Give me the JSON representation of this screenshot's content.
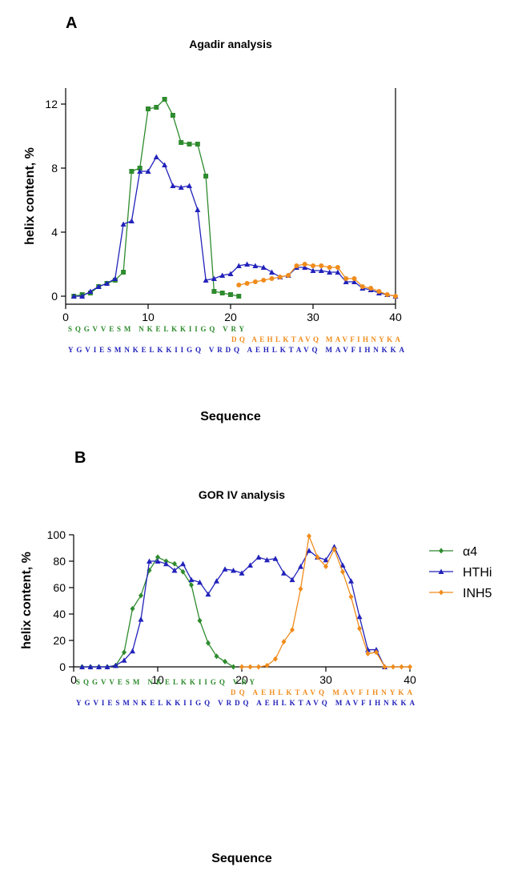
{
  "chart_data": [
    {
      "type": "line",
      "panel": "A",
      "title": "Agadir analysis",
      "x_label": "Sequence",
      "y_label": "helix content, %",
      "xlim": [
        0,
        40
      ],
      "xticks": [
        0,
        10,
        20,
        30,
        40
      ],
      "ylim": [
        -0.5,
        13
      ],
      "yticks": [
        0,
        4,
        8,
        12
      ],
      "right_frame": true,
      "legend": false,
      "series": [
        {
          "color": "#2e8b2e",
          "marker": "square",
          "x": [
            1,
            2,
            3,
            4,
            5,
            6,
            7,
            8,
            9,
            10,
            11,
            12,
            13,
            14,
            15,
            16,
            17,
            18,
            19,
            20,
            21
          ],
          "values": [
            0,
            0.1,
            0.2,
            0.6,
            0.8,
            1.0,
            1.5,
            7.8,
            8.0,
            11.7,
            11.8,
            12.3,
            11.3,
            9.6,
            9.5,
            9.5,
            7.5,
            0.3,
            0.2,
            0.1,
            0
          ]
        },
        {
          "color": "#2222bb",
          "marker": "triangle",
          "x": [
            1,
            2,
            3,
            4,
            5,
            6,
            7,
            8,
            9,
            10,
            11,
            12,
            13,
            14,
            15,
            16,
            17,
            18,
            19,
            20,
            21,
            22,
            23,
            24,
            25,
            26,
            27,
            28,
            29,
            30,
            31,
            32,
            33,
            34,
            35,
            36,
            37,
            38,
            39,
            40
          ],
          "values": [
            0,
            0,
            0.3,
            0.6,
            0.8,
            1.1,
            4.5,
            4.7,
            7.8,
            7.8,
            8.7,
            8.2,
            6.9,
            6.8,
            6.9,
            5.4,
            1.0,
            1.1,
            1.3,
            1.4,
            1.9,
            2.0,
            1.9,
            1.8,
            1.5,
            1.2,
            1.3,
            1.8,
            1.8,
            1.6,
            1.6,
            1.5,
            1.5,
            0.9,
            0.9,
            0.5,
            0.4,
            0.2,
            0.1,
            0
          ]
        },
        {
          "color": "#f08c1c",
          "marker": "circle",
          "x": [
            21,
            22,
            23,
            24,
            25,
            26,
            27,
            28,
            29,
            30,
            31,
            32,
            33,
            34,
            35,
            36,
            37,
            38,
            39,
            40
          ],
          "values": [
            0.7,
            0.8,
            0.9,
            1.0,
            1.1,
            1.2,
            1.3,
            1.9,
            2.0,
            1.9,
            1.9,
            1.8,
            1.8,
            1.1,
            1.1,
            0.6,
            0.5,
            0.3,
            0.1,
            0
          ]
        }
      ],
      "sequences": [
        {
          "text": "SQGVVESM NKELKKIIGQ VRY",
          "color": "#2e8b2e"
        },
        {
          "text": "DQ AEHLKTAVQ MAVFIHNYKA",
          "color": "#f08c1c"
        },
        {
          "text": "YGVIESMNKELKKIIGQ VRDQ AEHLKTAVQ MAVFIHNKKA",
          "color": "#2222bb"
        }
      ]
    },
    {
      "type": "line",
      "panel": "B",
      "title": "GOR IV analysis",
      "x_label": "Sequence",
      "y_label": "helix content, %",
      "xlim": [
        0,
        40
      ],
      "xticks": [
        0,
        10,
        20,
        30,
        40
      ],
      "ylim": [
        0,
        100
      ],
      "yticks": [
        0,
        20,
        40,
        60,
        80,
        100
      ],
      "right_frame": false,
      "legend": "right",
      "series": [
        {
          "name": "α4",
          "color": "#2e8b2e",
          "marker": "diamond",
          "x": [
            1,
            2,
            3,
            4,
            5,
            6,
            7,
            8,
            9,
            10,
            11,
            12,
            13,
            14,
            15,
            16,
            17,
            18,
            19
          ],
          "values": [
            0,
            0,
            0,
            0,
            1,
            11,
            44,
            54,
            73,
            83,
            80,
            78,
            72,
            62,
            35,
            18,
            8,
            4,
            0
          ]
        },
        {
          "name": "HTHi",
          "color": "#2222bb",
          "marker": "triangle",
          "x": [
            1,
            2,
            3,
            4,
            5,
            6,
            7,
            8,
            9,
            10,
            11,
            12,
            13,
            14,
            15,
            16,
            17,
            18,
            19,
            20,
            21,
            22,
            23,
            24,
            25,
            26,
            27,
            28,
            29,
            30,
            31,
            32,
            33,
            34,
            35,
            36,
            37
          ],
          "values": [
            0,
            0,
            0,
            0,
            1,
            5,
            12,
            36,
            80,
            80,
            78,
            73,
            78,
            66,
            64,
            55,
            65,
            74,
            73,
            71,
            77,
            83,
            81,
            82,
            71,
            66,
            76,
            88,
            83,
            81,
            91,
            77,
            65,
            38,
            13,
            13,
            0
          ]
        },
        {
          "name": "INH5",
          "color": "#f08c1c",
          "marker": "diamond",
          "x": [
            20,
            21,
            22,
            23,
            24,
            25,
            26,
            27,
            28,
            29,
            30,
            31,
            32,
            33,
            34,
            35,
            36,
            37,
            38,
            39,
            40
          ],
          "values": [
            0,
            0,
            0,
            1,
            6,
            19,
            28,
            59,
            99,
            83,
            76,
            89,
            72,
            53,
            29,
            10,
            11,
            0,
            0,
            0,
            0
          ]
        }
      ],
      "sequences": [
        {
          "text": "SQGVVESM NKELKKIIGQ VRY",
          "color": "#2e8b2e"
        },
        {
          "text": "DQ AEHLKTAVQ MAVFIHNYKA",
          "color": "#f08c1c"
        },
        {
          "text": "YGVIESMNKELKKIIGQ VRDQ AEHLKTAVQ MAVFIHNKKA",
          "color": "#2222bb"
        }
      ]
    }
  ]
}
